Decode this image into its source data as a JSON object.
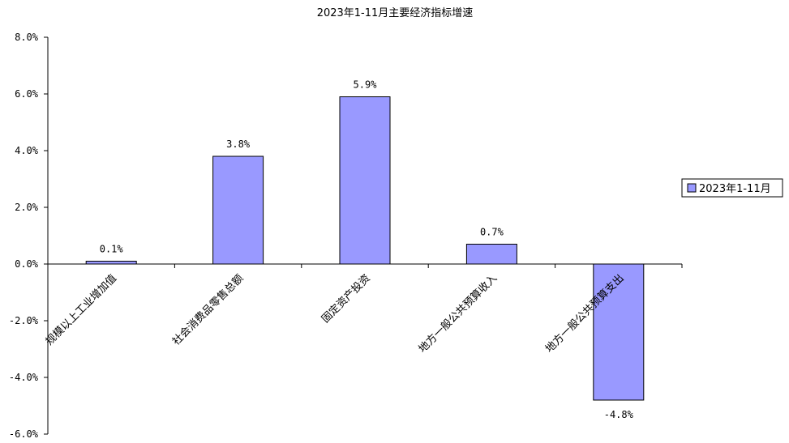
{
  "chart_data": {
    "type": "bar",
    "title": "2023年1-11月主要经济指标增速",
    "xlabel": "",
    "ylabel": "",
    "categories": [
      "规模以上工业增加值",
      "社会消费品零售总额",
      "固定资产投资",
      "地方一般公共预算收入",
      "地方一般公共预算支出"
    ],
    "series": [
      {
        "name": "2023年1-11月",
        "values": [
          0.1,
          3.8,
          5.9,
          0.7,
          -4.8
        ],
        "color": "#9999ff"
      }
    ],
    "data_labels": [
      "0.1%",
      "3.8%",
      "5.9%",
      "0.7%",
      "-4.8%"
    ],
    "ylim": [
      -6.0,
      8.0
    ],
    "yticks": [
      8.0,
      6.0,
      4.0,
      2.0,
      0.0,
      -2.0,
      -4.0,
      -6.0
    ],
    "ytick_labels": [
      "8.0%",
      "6.0%",
      "4.0%",
      "2.0%",
      "0.0%",
      "-2.0%",
      "-4.0%",
      "-6.0%"
    ],
    "grid": false,
    "legend_position": "right"
  }
}
